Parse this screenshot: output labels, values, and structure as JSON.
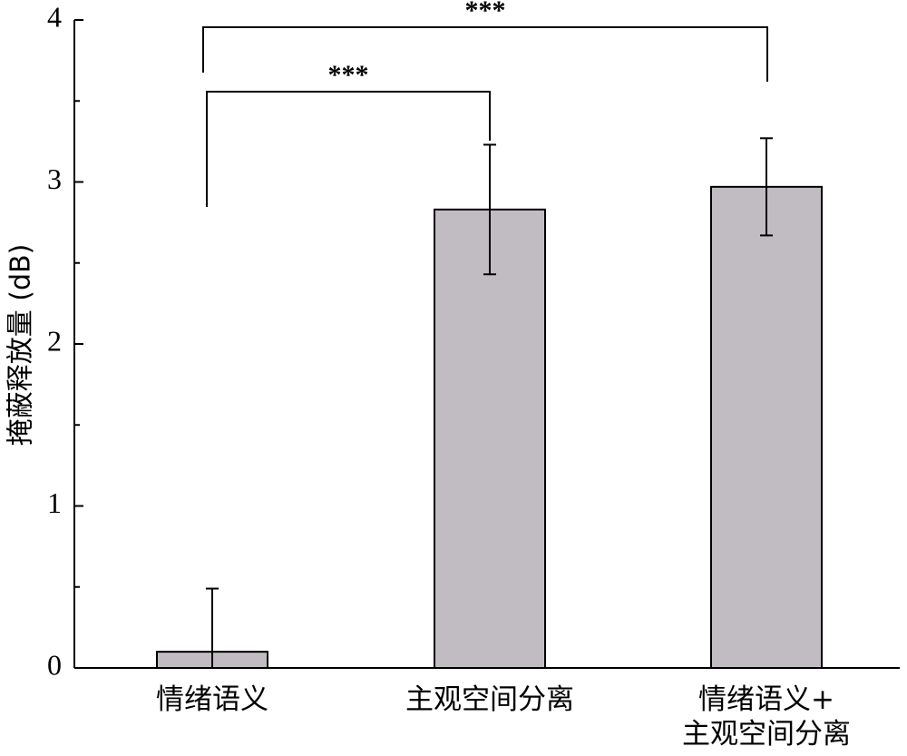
{
  "chart_data": {
    "type": "bar",
    "y_label": "掩蔽释放量 (dB)",
    "categories": [
      "情绪语义",
      "主观空间分离",
      "情绪语义+\n主观空间分离"
    ],
    "values": [
      0.1,
      2.83,
      2.97
    ],
    "errors": [
      0.39,
      0.4,
      0.3
    ],
    "color": "#c0bcc1",
    "ylim": [
      0,
      4
    ],
    "yticks": [
      0,
      1,
      2,
      3,
      4
    ],
    "yminorticks": [
      0.5,
      1.5,
      2.5,
      3.5
    ],
    "annotations": [
      "***",
      "***"
    ]
  }
}
